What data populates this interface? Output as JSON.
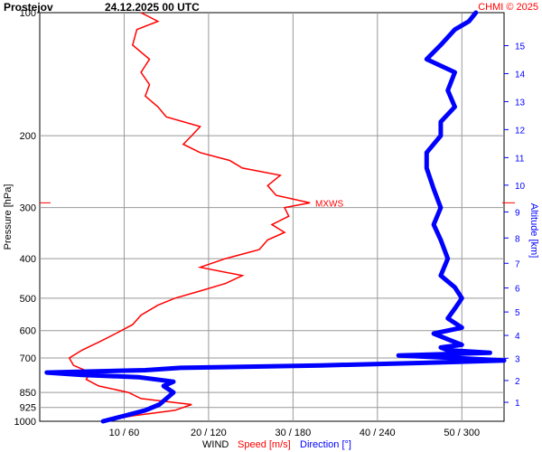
{
  "header": {
    "station": "Prostejov",
    "datetime": "24.12.2025 00 UTC",
    "credit": "CHMI © 2025"
  },
  "colors": {
    "speed": "#ff0000",
    "direction": "#0000ff",
    "grid": "#999999",
    "text": "#000000"
  },
  "chart_data": {
    "type": "line",
    "title": "Prostejov 24.12.2025 00 UTC",
    "ylabel_left": "Pressure [hPa]",
    "ylabel_right": "Altitude [km]",
    "y_scale": "log-pressure",
    "ylim_hpa": [
      1000,
      100
    ],
    "pressure_ticks": [
      "100",
      "200",
      "300",
      "400",
      "500",
      "600",
      "700",
      "850",
      "925",
      "1000"
    ],
    "pressure_tick_values": [
      100,
      200,
      300,
      400,
      500,
      600,
      700,
      850,
      925,
      1000
    ],
    "altitude_ticks": [
      "1",
      "2",
      "3",
      "4",
      "5",
      "6",
      "7",
      "8",
      "9",
      "10",
      "11",
      "12",
      "13",
      "14",
      "15"
    ],
    "xlabel_parts": [
      "WIND",
      "Speed [m/s]",
      "Direction [°]"
    ],
    "x_ticks": [
      "10 / 60",
      "20 / 120",
      "30 / 180",
      "40 / 240",
      "50 / 300"
    ],
    "speed_range_ms": [
      0,
      55
    ],
    "direction_range_deg": [
      0,
      330
    ],
    "grid": true,
    "mxws_label": "MXWS",
    "mxws_pressure_hpa": 292,
    "series": [
      {
        "name": "Speed [m/s]",
        "unit": "m/s",
        "points": [
          [
            1000,
            7.5
          ],
          [
            970,
            11
          ],
          [
            940,
            16
          ],
          [
            910,
            18
          ],
          [
            880,
            12
          ],
          [
            850,
            10.5
          ],
          [
            820,
            7
          ],
          [
            790,
            5.5
          ],
          [
            760,
            6
          ],
          [
            730,
            4
          ],
          [
            700,
            3.5
          ],
          [
            670,
            5
          ],
          [
            640,
            7
          ],
          [
            610,
            9
          ],
          [
            580,
            11
          ],
          [
            550,
            12
          ],
          [
            520,
            14
          ],
          [
            500,
            16
          ],
          [
            480,
            19
          ],
          [
            460,
            22
          ],
          [
            440,
            24
          ],
          [
            420,
            19
          ],
          [
            400,
            22
          ],
          [
            380,
            26
          ],
          [
            360,
            27
          ],
          [
            345,
            29
          ],
          [
            330,
            27.5
          ],
          [
            315,
            29.5
          ],
          [
            300,
            29
          ],
          [
            292,
            32
          ],
          [
            280,
            28
          ],
          [
            265,
            27
          ],
          [
            250,
            28.5
          ],
          [
            240,
            24
          ],
          [
            230,
            22.5
          ],
          [
            220,
            19
          ],
          [
            210,
            17
          ],
          [
            200,
            18
          ],
          [
            190,
            19
          ],
          [
            180,
            15
          ],
          [
            170,
            14
          ],
          [
            160,
            12.5
          ],
          [
            150,
            13
          ],
          [
            140,
            12
          ],
          [
            130,
            13
          ],
          [
            120,
            11
          ],
          [
            110,
            11.5
          ],
          [
            105,
            14
          ],
          [
            100,
            12
          ]
        ]
      },
      {
        "name": "Direction [°]",
        "unit": "deg",
        "points": [
          [
            1000,
            45
          ],
          [
            970,
            60
          ],
          [
            940,
            75
          ],
          [
            910,
            85
          ],
          [
            880,
            90
          ],
          [
            850,
            95
          ],
          [
            820,
            88
          ],
          [
            800,
            95
          ],
          [
            780,
            70
          ],
          [
            770,
            30
          ],
          [
            760,
            5
          ],
          [
            750,
            75
          ],
          [
            740,
            100
          ],
          [
            730,
            200
          ],
          [
            720,
            270
          ],
          [
            710,
            330
          ],
          [
            700,
            295
          ],
          [
            690,
            255
          ],
          [
            680,
            320
          ],
          [
            670,
            290
          ],
          [
            660,
            285
          ],
          [
            650,
            300
          ],
          [
            630,
            290
          ],
          [
            610,
            280
          ],
          [
            590,
            300
          ],
          [
            560,
            290
          ],
          [
            530,
            295
          ],
          [
            500,
            300
          ],
          [
            470,
            295
          ],
          [
            440,
            285
          ],
          [
            400,
            290
          ],
          [
            360,
            285
          ],
          [
            330,
            280
          ],
          [
            300,
            285
          ],
          [
            270,
            280
          ],
          [
            240,
            275
          ],
          [
            220,
            275
          ],
          [
            200,
            285
          ],
          [
            185,
            285
          ],
          [
            170,
            295
          ],
          [
            155,
            290
          ],
          [
            140,
            295
          ],
          [
            130,
            275
          ],
          [
            120,
            285
          ],
          [
            110,
            295
          ],
          [
            105,
            305
          ],
          [
            100,
            310
          ]
        ]
      }
    ]
  }
}
